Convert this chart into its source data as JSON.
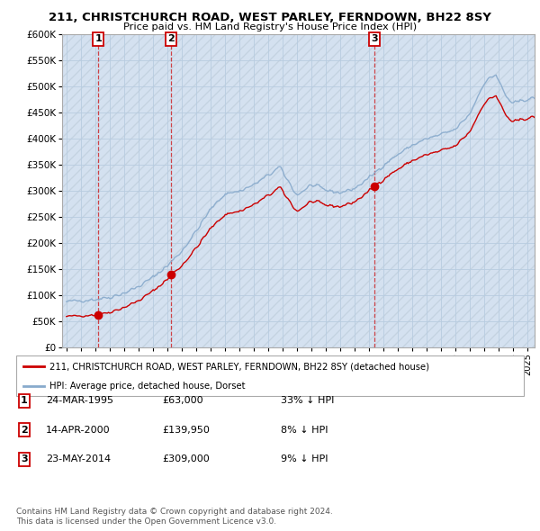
{
  "title": "211, CHRISTCHURCH ROAD, WEST PARLEY, FERNDOWN, BH22 8SY",
  "subtitle": "Price paid vs. HM Land Registry's House Price Index (HPI)",
  "ylim": [
    0,
    600000
  ],
  "xlim_start": 1992.7,
  "xlim_end": 2025.5,
  "x_tick_start": 1993,
  "x_tick_end": 2025,
  "sales": [
    {
      "num": 1,
      "year": 1995.22,
      "price": 63000,
      "date": "24-MAR-1995",
      "pct": "33%",
      "dir": "↓"
    },
    {
      "num": 2,
      "year": 2000.28,
      "price": 139950,
      "date": "14-APR-2000",
      "pct": "8%",
      "dir": "↓"
    },
    {
      "num": 3,
      "year": 2014.38,
      "price": 309000,
      "date": "23-MAY-2014",
      "pct": "9%",
      "dir": "↓"
    }
  ],
  "legend_line1": "211, CHRISTCHURCH ROAD, WEST PARLEY, FERNDOWN, BH22 8SY (detached house)",
  "legend_line2": "HPI: Average price, detached house, Dorset",
  "footer1": "Contains HM Land Registry data © Crown copyright and database right 2024.",
  "footer2": "This data is licensed under the Open Government Licence v3.0.",
  "red_color": "#cc0000",
  "blue_color": "#88aacc",
  "bg_color": "#dce8f4",
  "grid_color": "#b8cce0",
  "hatch_bg": "#ccdaec"
}
